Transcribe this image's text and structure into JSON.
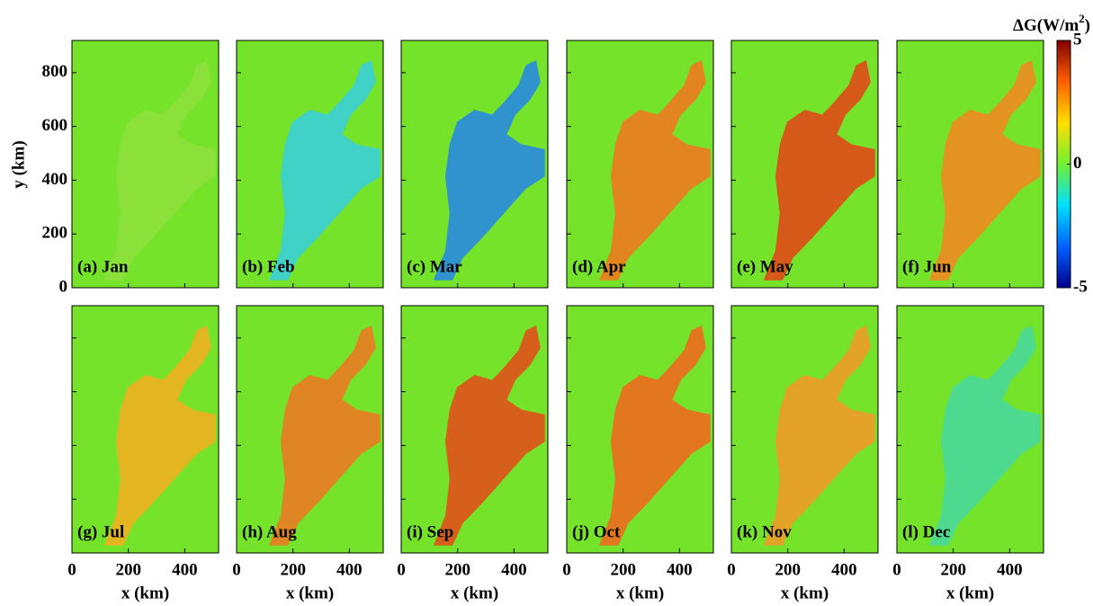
{
  "figure": {
    "type": "map-grid",
    "panels": [
      {
        "label": "(a) Jan",
        "color": "#8ee03c"
      },
      {
        "label": "(b) Feb",
        "color": "#3ccfd8"
      },
      {
        "label": "(c) Mar",
        "color": "#2a8ae0"
      },
      {
        "label": "(d) Apr",
        "color": "#ee7a20"
      },
      {
        "label": "(e) May",
        "color": "#e04a18"
      },
      {
        "label": "(f) Jun",
        "color": "#f08a20"
      },
      {
        "label": "(g) Jul",
        "color": "#f0b020"
      },
      {
        "label": "(h) Aug",
        "color": "#ec7a22"
      },
      {
        "label": "(i) Sep",
        "color": "#e0501a"
      },
      {
        "label": "(j) Oct",
        "color": "#ee6a1e"
      },
      {
        "label": "(k) Nov",
        "color": "#f09a28"
      },
      {
        "label": "(l) Dec",
        "color": "#4ad89a"
      }
    ],
    "background_color": "#74e32a",
    "xlabel": "x (km)",
    "ylabel": "y (km)",
    "xlim": [
      0,
      520
    ],
    "xticks": [
      0,
      200,
      400
    ],
    "ylim": [
      0,
      920
    ],
    "yticks": [
      0,
      200,
      400,
      600,
      800
    ],
    "colorbar": {
      "label_parts": [
        "ΔG(W/m",
        "2",
        ")"
      ],
      "clim": [
        -5,
        5
      ],
      "ticks": [
        5,
        0,
        -5
      ],
      "colors": [
        "#00008f",
        "#0060ff",
        "#00e0ff",
        "#70f030",
        "#ffe000",
        "#ff6000",
        "#800000"
      ]
    }
  }
}
